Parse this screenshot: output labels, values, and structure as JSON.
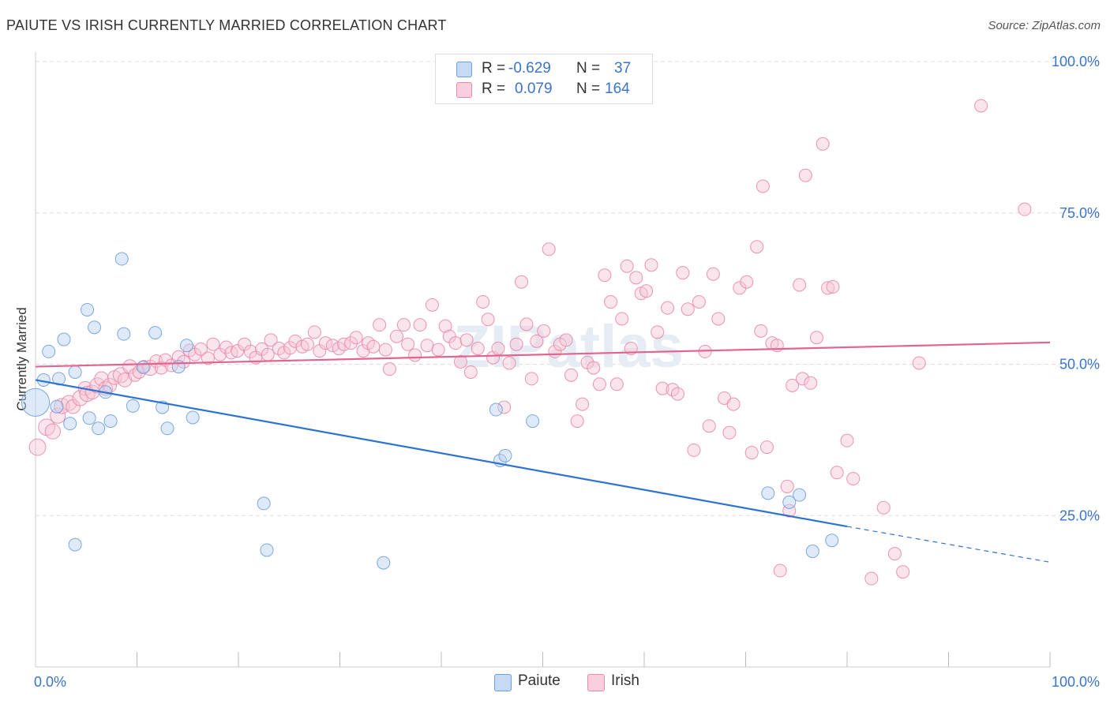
{
  "title": "PAIUTE VS IRISH CURRENTLY MARRIED CORRELATION CHART",
  "source": "Source: ZipAtlas.com",
  "colors": {
    "paiute": "#6f9fde",
    "paiute_fill": "#b8d0f1",
    "paiute_line": "#2f73d1",
    "irish": "#ea88a8",
    "irish_fill": "#f7c5d5",
    "irish_line": "#e2648f",
    "accent_text": "#3a74c8"
  },
  "stats": {
    "paiute": {
      "r_label": "R =",
      "r": "-0.629",
      "n_label": "N =",
      "n": "37"
    },
    "irish": {
      "r_label": "R =",
      "r": "0.079",
      "n_label": "N =",
      "n": "164"
    }
  },
  "legend": {
    "paiute": "Paiute",
    "irish": "Irish"
  },
  "watermark": "ZIPatlas",
  "chart_data": {
    "type": "scatter",
    "xlabel": "",
    "ylabel": "Currently Married",
    "xlim": [
      0,
      100
    ],
    "ylim": [
      0,
      100
    ],
    "x_tick_labels": [
      "0.0%",
      "100.0%"
    ],
    "y_tick_labels": [
      "25.0%",
      "50.0%",
      "75.0%",
      "100.0%"
    ],
    "y_ticks": [
      25,
      50,
      75,
      100
    ],
    "grid": true,
    "legend_position": "bottom-center",
    "series": [
      {
        "name": "Paiute",
        "trend": {
          "x0": 0,
          "y0": 47.4,
          "x1": 80,
          "y1": 23.2,
          "dash_x1": 100,
          "dash_y1": 17.3
        },
        "points": [
          [
            0,
            43.7,
            2.2
          ],
          [
            0.8,
            47.4,
            1
          ],
          [
            1.3,
            52.1,
            1
          ],
          [
            2.1,
            43,
            1
          ],
          [
            2.3,
            47.6,
            1
          ],
          [
            2.8,
            54.1,
            1
          ],
          [
            3.4,
            40.2,
            1
          ],
          [
            3.9,
            48.7,
            1
          ],
          [
            3.9,
            20.2,
            1
          ],
          [
            5.1,
            59,
            1
          ],
          [
            5.3,
            41.1,
            1
          ],
          [
            5.8,
            56.1,
            1
          ],
          [
            6.2,
            39.4,
            1
          ],
          [
            6.9,
            45.4,
            1
          ],
          [
            7.4,
            40.6,
            1
          ],
          [
            8.5,
            67.4,
            1
          ],
          [
            8.7,
            55,
            1
          ],
          [
            9.6,
            43.1,
            1
          ],
          [
            10.6,
            49.5,
            1
          ],
          [
            11.8,
            55.2,
            1
          ],
          [
            12.5,
            42.9,
            1
          ],
          [
            13,
            39.4,
            1
          ],
          [
            14.1,
            49.6,
            1
          ],
          [
            14.9,
            53.1,
            1
          ],
          [
            15.5,
            41.2,
            1
          ],
          [
            22.5,
            27,
            1
          ],
          [
            22.8,
            19.3,
            1
          ],
          [
            34.3,
            17.2,
            1
          ],
          [
            45.4,
            42.5,
            1
          ],
          [
            45.8,
            34.1,
            1
          ],
          [
            46.3,
            34.9,
            1
          ],
          [
            49,
            40.6,
            1
          ],
          [
            72.2,
            28.7,
            1
          ],
          [
            74.3,
            27.2,
            1
          ],
          [
            75.3,
            28.4,
            1
          ],
          [
            76.6,
            19.1,
            1
          ],
          [
            78.5,
            20.9,
            1
          ]
        ]
      },
      {
        "name": "Irish",
        "trend": {
          "x0": 0,
          "y0": 49.6,
          "x1": 100,
          "y1": 53.6
        },
        "points": [
          [
            0.2,
            36.3,
            1.3
          ],
          [
            1.1,
            39.6,
            1.3
          ],
          [
            1.7,
            38.9,
            1.2
          ],
          [
            2.2,
            41.5,
            1.2
          ],
          [
            2.6,
            43.1,
            1.2
          ],
          [
            3.3,
            43.6,
            1.2
          ],
          [
            3.7,
            43,
            1.1
          ],
          [
            4.4,
            44.4,
            1.2
          ],
          [
            4.9,
            46,
            1.1
          ],
          [
            5.1,
            45.1,
            1.2
          ],
          [
            5.6,
            45.4,
            1.1
          ],
          [
            6.1,
            46.5,
            1.2
          ],
          [
            6.5,
            47.6,
            1.1
          ],
          [
            6.9,
            46,
            1.1
          ],
          [
            7.3,
            46.5,
            1.1
          ],
          [
            7.8,
            47.8,
            1.1
          ],
          [
            8.4,
            48.2,
            1.2
          ],
          [
            8.8,
            47.4,
            1.1
          ],
          [
            9.3,
            49.6,
            1.1
          ],
          [
            9.8,
            48.2,
            1
          ],
          [
            10.2,
            48.7,
            1
          ],
          [
            10.7,
            49.6,
            1
          ],
          [
            11.3,
            49.4,
            1.2
          ],
          [
            11.9,
            50.5,
            1
          ],
          [
            12.4,
            49.4,
            1
          ],
          [
            12.8,
            50.7,
            1
          ],
          [
            13.4,
            49.8,
            1
          ],
          [
            14.1,
            51.2,
            1
          ],
          [
            14.6,
            50.4,
            1
          ],
          [
            15.2,
            52.3,
            1
          ],
          [
            15.7,
            51.6,
            1
          ],
          [
            16.3,
            52.5,
            1
          ],
          [
            17,
            51,
            1
          ],
          [
            17.5,
            53.3,
            1
          ],
          [
            18.2,
            51.6,
            1
          ],
          [
            18.8,
            52.8,
            1
          ],
          [
            19.3,
            51.9,
            1
          ],
          [
            19.9,
            52.2,
            1
          ],
          [
            20.6,
            53.3,
            1
          ],
          [
            21.2,
            52.1,
            1
          ],
          [
            21.7,
            51.1,
            1
          ],
          [
            22.3,
            52.5,
            1
          ],
          [
            22.9,
            51.6,
            1
          ],
          [
            23.2,
            54,
            1
          ],
          [
            24,
            52.6,
            1
          ],
          [
            24.5,
            51.9,
            1
          ],
          [
            25.1,
            52.7,
            1
          ],
          [
            25.6,
            53.8,
            1
          ],
          [
            26.3,
            52.9,
            1
          ],
          [
            26.8,
            53.3,
            1
          ],
          [
            27.5,
            55.3,
            1
          ],
          [
            28,
            52.2,
            1
          ],
          [
            28.6,
            53.5,
            1
          ],
          [
            29.3,
            53.1,
            1
          ],
          [
            29.9,
            52.6,
            1
          ],
          [
            30.4,
            53.3,
            1
          ],
          [
            31.1,
            53.5,
            1
          ],
          [
            31.6,
            54.4,
            1
          ],
          [
            32.3,
            52.2,
            1
          ],
          [
            32.8,
            53.5,
            1
          ],
          [
            33.3,
            52.9,
            1
          ],
          [
            33.9,
            56.5,
            1
          ],
          [
            34.5,
            52.4,
            1
          ],
          [
            34.9,
            49.2,
            1
          ],
          [
            35.6,
            54.6,
            1
          ],
          [
            36.3,
            56.5,
            1
          ],
          [
            36.7,
            53.3,
            1
          ],
          [
            37.4,
            51.5,
            1
          ],
          [
            37.9,
            56.5,
            1
          ],
          [
            38.6,
            53.1,
            1
          ],
          [
            39.1,
            59.8,
            1
          ],
          [
            39.7,
            52.4,
            1
          ],
          [
            40.4,
            56.3,
            1
          ],
          [
            40.8,
            54.6,
            1
          ],
          [
            41.4,
            53.5,
            1
          ],
          [
            41.9,
            50.4,
            1
          ],
          [
            42.5,
            54,
            1
          ],
          [
            42.9,
            48.7,
            1
          ],
          [
            43.6,
            52.6,
            1
          ],
          [
            44.1,
            60.3,
            1
          ],
          [
            44.6,
            57.4,
            1
          ],
          [
            45.1,
            51.1,
            1
          ],
          [
            45.6,
            52.6,
            1
          ],
          [
            46.2,
            42.9,
            1
          ],
          [
            46.7,
            50.2,
            1
          ],
          [
            47.4,
            53.3,
            1
          ],
          [
            47.9,
            63.6,
            1
          ],
          [
            48.4,
            56.6,
            1
          ],
          [
            48.9,
            47.6,
            1
          ],
          [
            49.4,
            53.8,
            1
          ],
          [
            50.1,
            55.5,
            1
          ],
          [
            50.6,
            69,
            1
          ],
          [
            51.2,
            52.1,
            1
          ],
          [
            51.7,
            53.3,
            1
          ],
          [
            52.3,
            54,
            1
          ],
          [
            52.8,
            48.2,
            1
          ],
          [
            53.4,
            40.6,
            1
          ],
          [
            53.9,
            43.4,
            1
          ],
          [
            54.4,
            50.3,
            1
          ],
          [
            55,
            49.4,
            1
          ],
          [
            55.6,
            46.7,
            1
          ],
          [
            56.1,
            64.7,
            1
          ],
          [
            56.7,
            60.3,
            1
          ],
          [
            57.3,
            46.7,
            1
          ],
          [
            57.8,
            57.5,
            1
          ],
          [
            58.3,
            66.2,
            1
          ],
          [
            58.7,
            52.6,
            1
          ],
          [
            59.2,
            64.3,
            1
          ],
          [
            59.7,
            61.7,
            1
          ],
          [
            60.2,
            62.1,
            1
          ],
          [
            60.7,
            66.4,
            1
          ],
          [
            61.3,
            55.3,
            1
          ],
          [
            61.8,
            46,
            1
          ],
          [
            62.3,
            59.3,
            1
          ],
          [
            62.8,
            45.8,
            1
          ],
          [
            63.3,
            45.1,
            1
          ],
          [
            63.8,
            65.1,
            1
          ],
          [
            64.3,
            59.1,
            1
          ],
          [
            64.9,
            35.8,
            1
          ],
          [
            65.4,
            60.3,
            1
          ],
          [
            66,
            52.1,
            1
          ],
          [
            66.4,
            39.8,
            1
          ],
          [
            66.8,
            64.9,
            1
          ],
          [
            67.3,
            57.5,
            1
          ],
          [
            67.9,
            44.4,
            1
          ],
          [
            68.4,
            38.7,
            1
          ],
          [
            68.8,
            43.4,
            1
          ],
          [
            69.4,
            62.6,
            1
          ],
          [
            70.1,
            63.6,
            1
          ],
          [
            70.6,
            35.4,
            1
          ],
          [
            71.1,
            69.4,
            1
          ],
          [
            71.5,
            55.5,
            1
          ],
          [
            71.7,
            79.4,
            1
          ],
          [
            72.1,
            36.3,
            1
          ],
          [
            72.6,
            53.5,
            1
          ],
          [
            73.1,
            53.1,
            1
          ],
          [
            73.4,
            15.9,
            1
          ],
          [
            74.1,
            29.8,
            1
          ],
          [
            74.3,
            25.8,
            1
          ],
          [
            74.6,
            46.5,
            1
          ],
          [
            75.3,
            63.1,
            1
          ],
          [
            75.6,
            47.6,
            1
          ],
          [
            75.9,
            81.2,
            1
          ],
          [
            76.4,
            46.9,
            1
          ],
          [
            77,
            54.4,
            1
          ],
          [
            77.6,
            86.4,
            1
          ],
          [
            78.1,
            62.6,
            1
          ],
          [
            78.6,
            62.8,
            1
          ],
          [
            79,
            32.1,
            1
          ],
          [
            80,
            37.4,
            1
          ],
          [
            80.6,
            31.1,
            1
          ],
          [
            82.4,
            14.6,
            1
          ],
          [
            83.6,
            26.3,
            1
          ],
          [
            84.7,
            18.7,
            1
          ],
          [
            85.5,
            15.7,
            1
          ],
          [
            87.1,
            50.2,
            1
          ],
          [
            93.2,
            92.7,
            1
          ],
          [
            97.5,
            75.6,
            1
          ]
        ]
      }
    ]
  }
}
